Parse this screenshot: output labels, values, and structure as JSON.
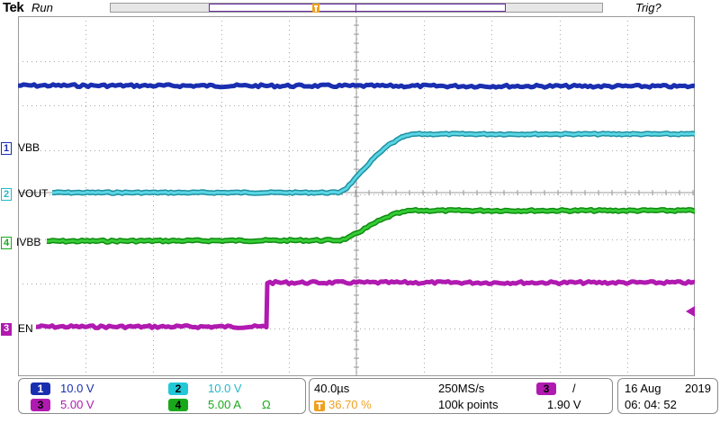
{
  "header": {
    "brand": "Tek",
    "status": "Run",
    "trigger_status": "Trig?"
  },
  "channels": [
    {
      "id": "1",
      "label": "VBB",
      "color": "#1a2fb0",
      "scale": "10.0 V"
    },
    {
      "id": "2",
      "label": "VOUT",
      "color": "#22b8c8",
      "scale": "10.0 V"
    },
    {
      "id": "3",
      "label": "EN",
      "color": "#b01ab0",
      "scale": "5.00 V"
    },
    {
      "id": "4",
      "label": "IVBB",
      "color": "#1aa81a",
      "scale": "5.00 A",
      "coupling": "Ω"
    }
  ],
  "timebase": {
    "scale": "40.0µs",
    "trigger_position": "36.70 %",
    "sample_rate": "250MS/s",
    "record_length": "100k points"
  },
  "trigger": {
    "source": "3",
    "slope": "/",
    "level": "1.90 V"
  },
  "datetime": {
    "date_day_month": "16 Aug",
    "year": "2019",
    "time": "06: 04: 52"
  },
  "colors": {
    "trigger_marker": "#f0a020",
    "record_window": "#6a2ca0"
  }
}
